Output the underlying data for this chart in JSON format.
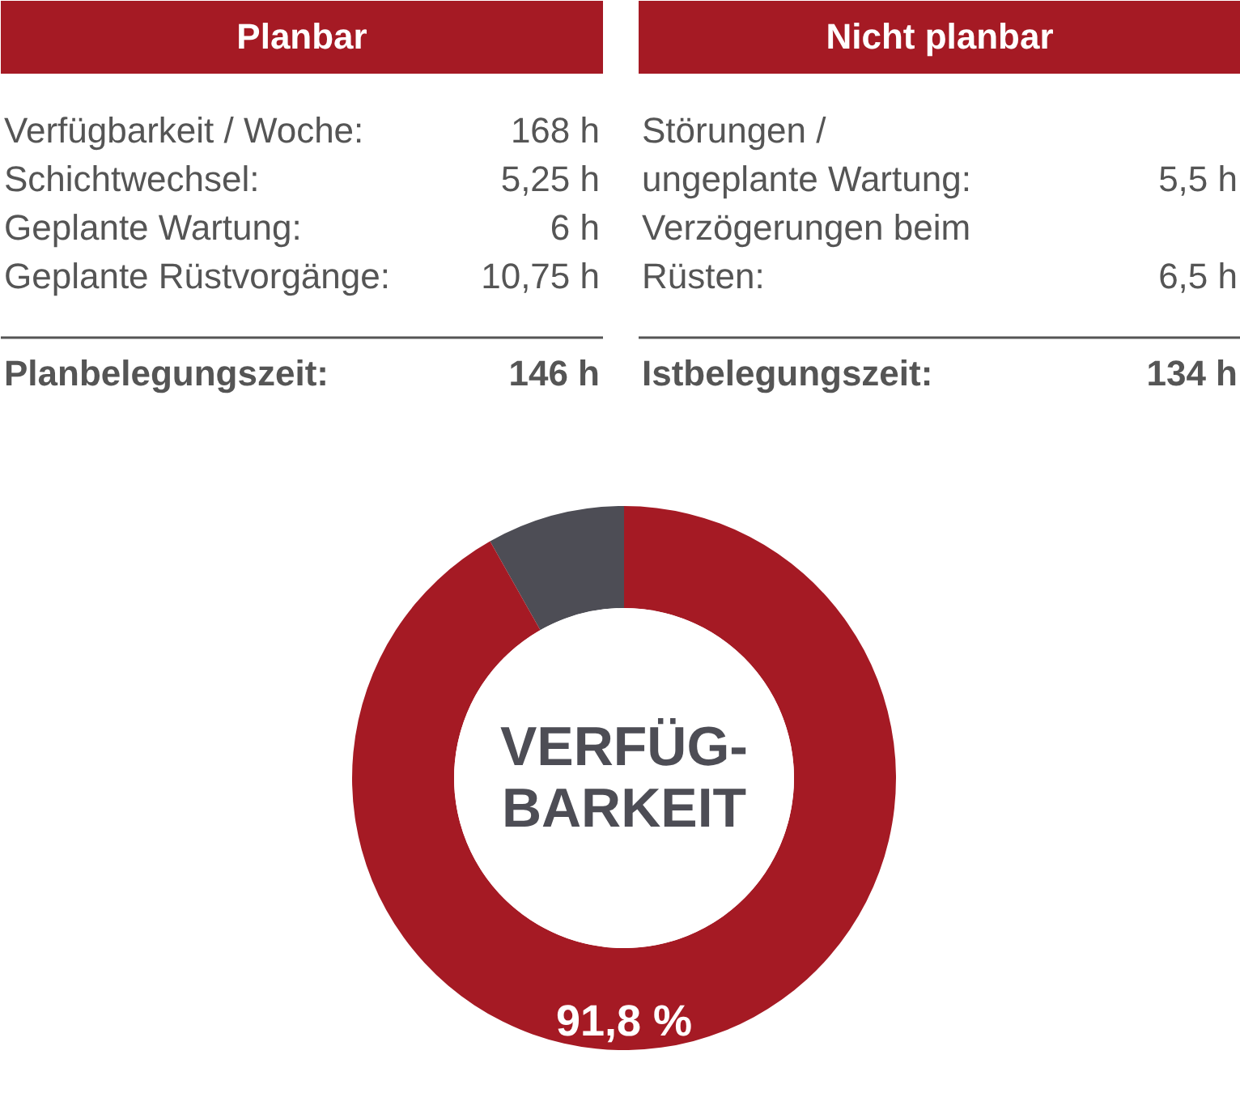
{
  "chart_data": {
    "type": "donut",
    "categories": [
      null,
      null
    ],
    "values": [
      91.8,
      8.2
    ],
    "colors": [
      "#a51a24",
      "#4d4d55"
    ],
    "value_labels": [
      "91,8 %",
      null
    ],
    "annotations": [
      "Planbar",
      "Verfügbarkeit / Woche:",
      "168 h",
      "Schichtwechsel:",
      "5,25 h",
      "Geplante Wartung:",
      "6 h",
      "Geplante Rüstvorgänge:",
      "10,75 h",
      "Planbelegungszeit:",
      "146 h",
      "Nicht planbar",
      "Störungen /",
      "ungeplante Wartung:",
      "5,5 h",
      "Verzögerungen beim",
      "Rüsten:",
      "6,5 h",
      "Istbelegungszeit:",
      "134 h",
      "VERFÜG-\nBARKEIT"
    ]
  }
}
